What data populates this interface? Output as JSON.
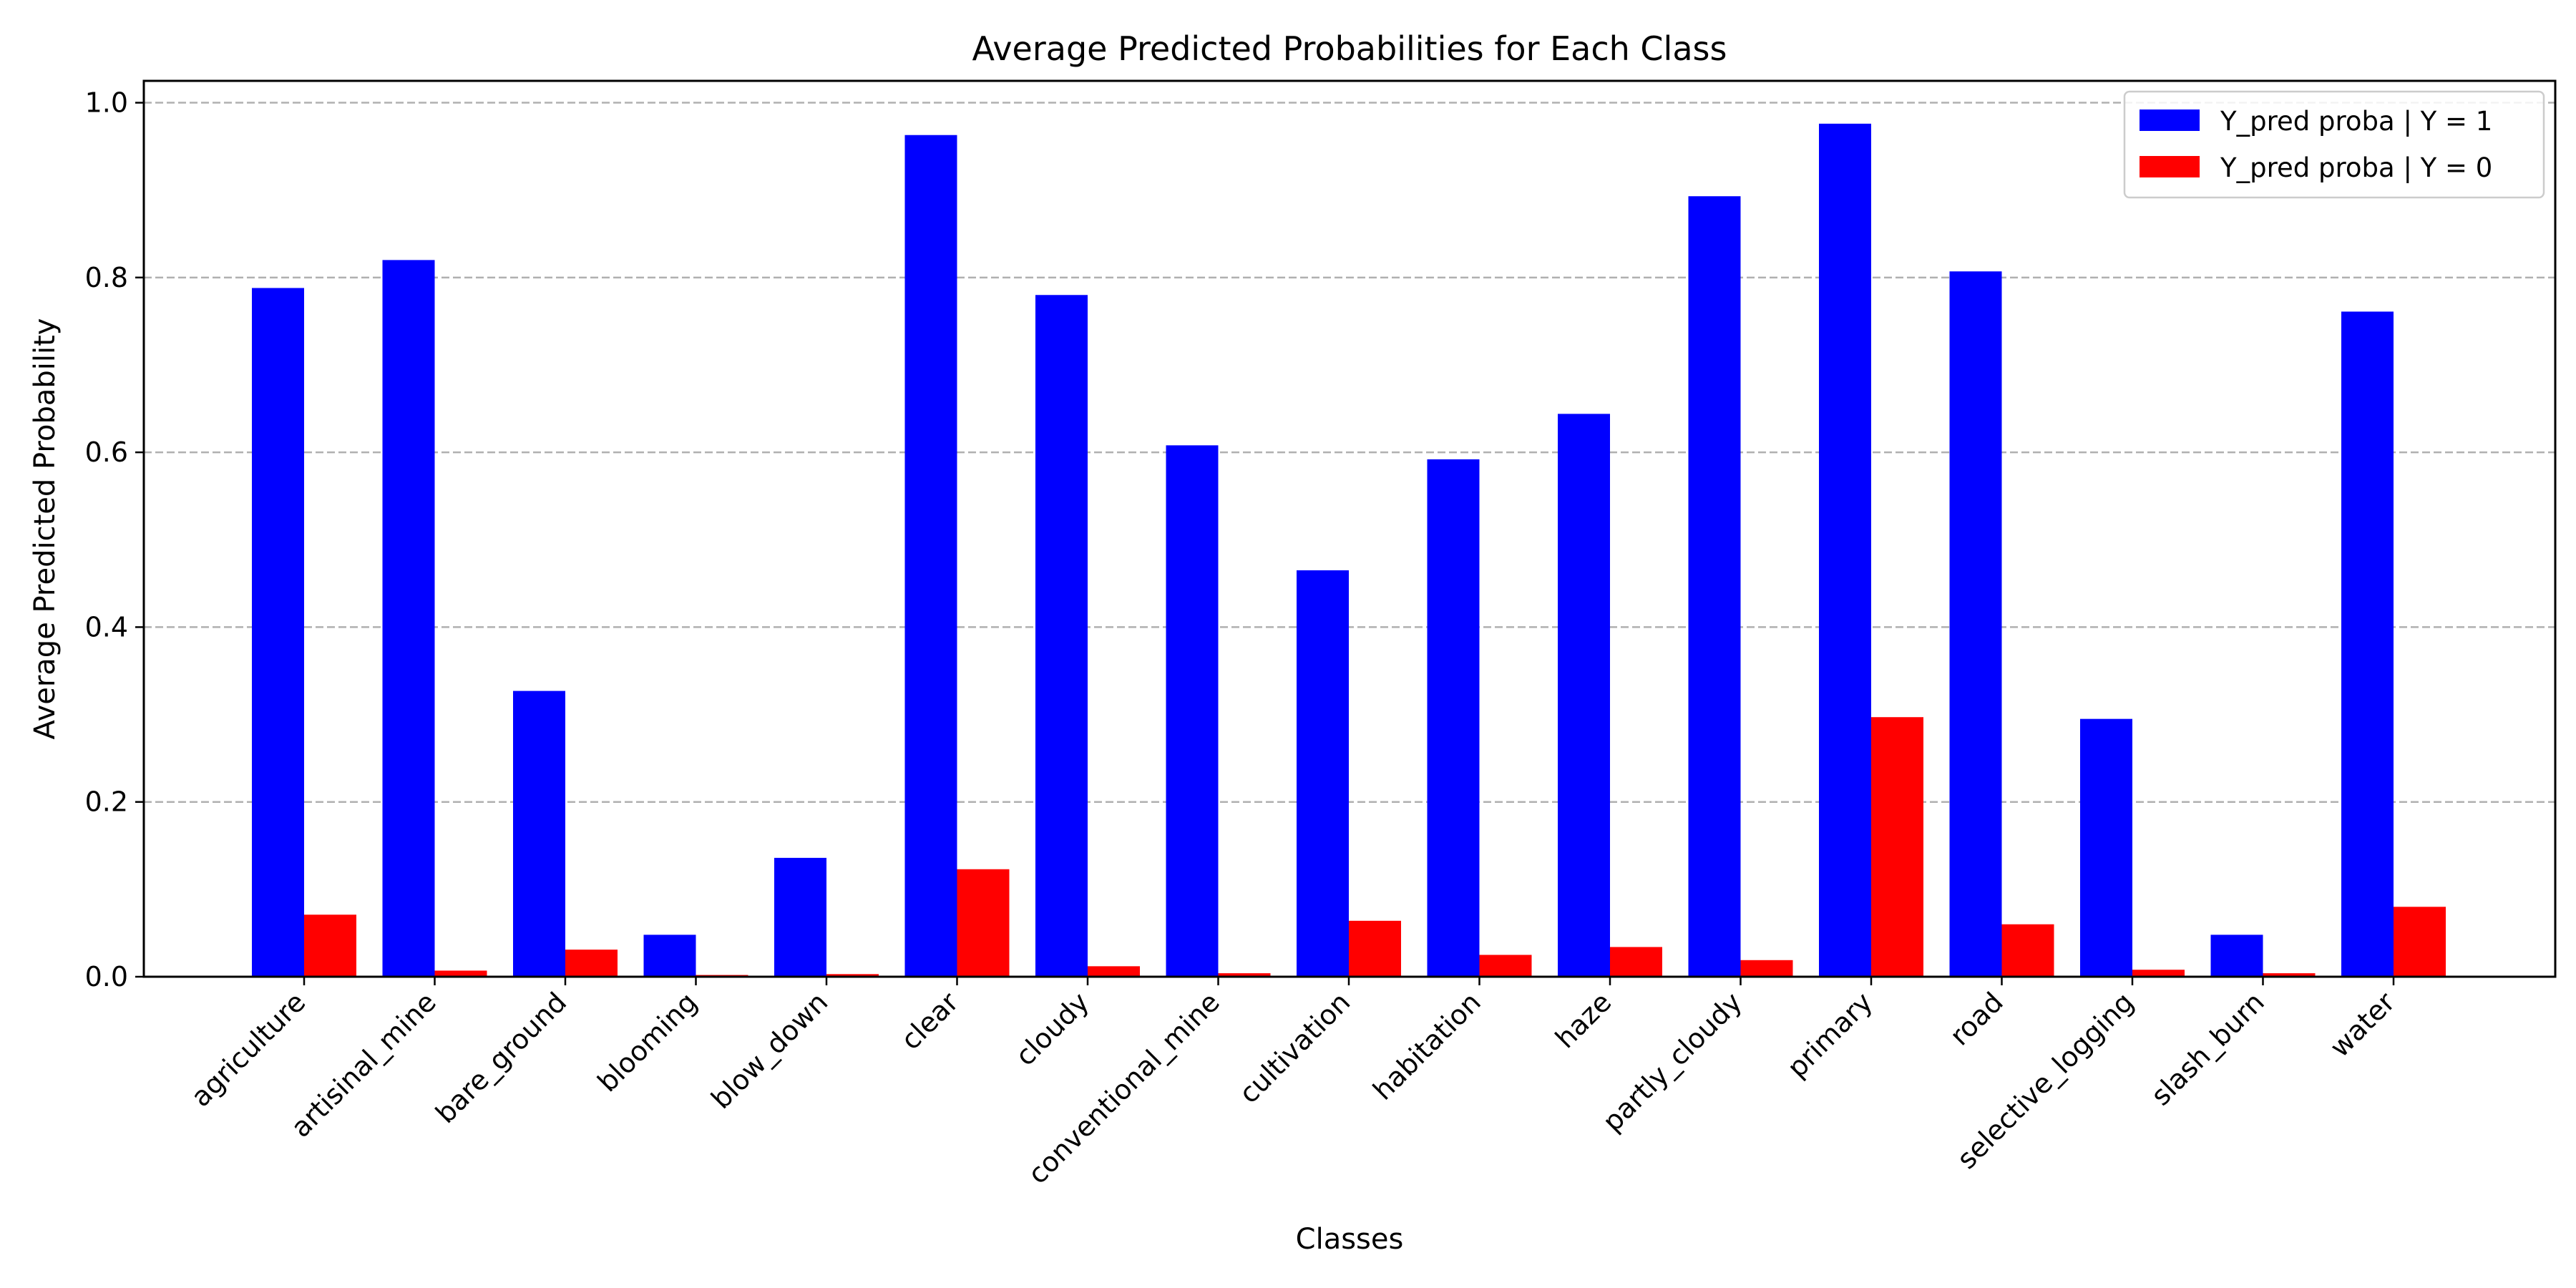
{
  "chart_data": {
    "type": "bar",
    "title": "Average Predicted Probabilities for Each Class",
    "xlabel": "Classes",
    "ylabel": "Average Predicted Probability",
    "ylim": [
      0,
      1.025
    ],
    "yticks": [
      "0.0",
      "0.2",
      "0.4",
      "0.6",
      "0.8",
      "1.0"
    ],
    "grid": "y-dashed",
    "legend_placement": "top-right",
    "categories": [
      "agriculture",
      "artisinal_mine",
      "bare_ground",
      "blooming",
      "blow_down",
      "clear",
      "cloudy",
      "conventional_mine",
      "cultivation",
      "habitation",
      "haze",
      "partly_cloudy",
      "primary",
      "road",
      "selective_logging",
      "slash_burn",
      "water"
    ],
    "series": [
      {
        "name": "Y_pred proba | Y = 1",
        "color": "#0000ff",
        "values": [
          0.788,
          0.82,
          0.327,
          0.048,
          0.136,
          0.963,
          0.78,
          0.608,
          0.465,
          0.592,
          0.644,
          0.893,
          0.976,
          0.807,
          0.295,
          0.048,
          0.761
        ]
      },
      {
        "name": "Y_pred proba | Y = 0",
        "color": "#ff0000",
        "values": [
          0.071,
          0.007,
          0.031,
          0.002,
          0.003,
          0.123,
          0.012,
          0.004,
          0.064,
          0.025,
          0.034,
          0.019,
          0.297,
          0.06,
          0.008,
          0.004,
          0.08
        ]
      }
    ]
  }
}
